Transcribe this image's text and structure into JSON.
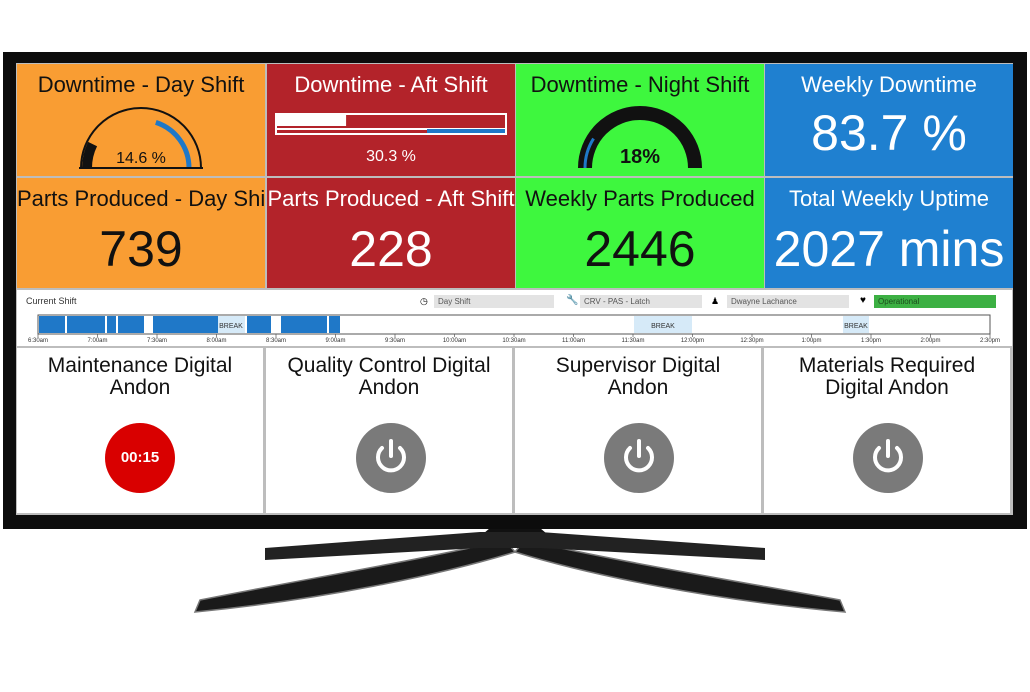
{
  "tiles": [
    {
      "title": "Downtime - Day Shift",
      "display": "gauge",
      "value": 14.6,
      "value_label": "14.6 %",
      "color": "#f99d33",
      "text_color": "#111111"
    },
    {
      "title": "Downtime - Aft Shift",
      "display": "bar",
      "value": 30.3,
      "value_label": "30.3 %",
      "color": "#b3232a",
      "text_color": "#ffffff"
    },
    {
      "title": "Downtime - Night Shift",
      "display": "ring",
      "value": 18,
      "value_label": "18%",
      "color": "#3ef73e",
      "text_color": "#111111"
    },
    {
      "title": "Weekly Downtime",
      "display": "text",
      "value_label": "83.7 %",
      "color": "#1f80d0",
      "text_color": "#ffffff"
    },
    {
      "title": "Parts Produced - Day Shift",
      "display": "text",
      "value_label": "739",
      "color": "#f99d33",
      "text_color": "#111111"
    },
    {
      "title": "Parts Produced - Aft Shift",
      "display": "text",
      "value_label": "228",
      "color": "#b3232a",
      "text_color": "#ffffff"
    },
    {
      "title": "Weekly Parts Produced",
      "display": "text",
      "value_label": "2446",
      "color": "#3ef73e",
      "text_color": "#111111"
    },
    {
      "title": "Total Weekly Uptime",
      "display": "text",
      "value_label": "2027 mins",
      "color": "#1f80d0",
      "text_color": "#ffffff"
    }
  ],
  "shift": {
    "title": "Current Shift",
    "shift_name": "Day Shift",
    "part": "CRV - PAS - Latch",
    "operator": "Dwayne Lachance",
    "status": "Operational",
    "breaks": [
      "BREAK",
      "BREAK",
      "BREAK"
    ],
    "times": [
      "6:30am",
      "7:00am",
      "7:30am",
      "8:00am",
      "8:30am",
      "9:00am",
      "9:30am",
      "10:00am",
      "10:30am",
      "11:00am",
      "11:30am",
      "12:00pm",
      "12:30pm",
      "1:00pm",
      "1:30pm",
      "2:00pm",
      "2:30pm"
    ]
  },
  "andons": [
    {
      "title": "Maintenance Digital Andon",
      "timer": "00:15"
    },
    {
      "title": "Quality Control Digital Andon"
    },
    {
      "title": "Supervisor Digital Andon"
    },
    {
      "title": "Materials Required Digital Andon"
    }
  ]
}
